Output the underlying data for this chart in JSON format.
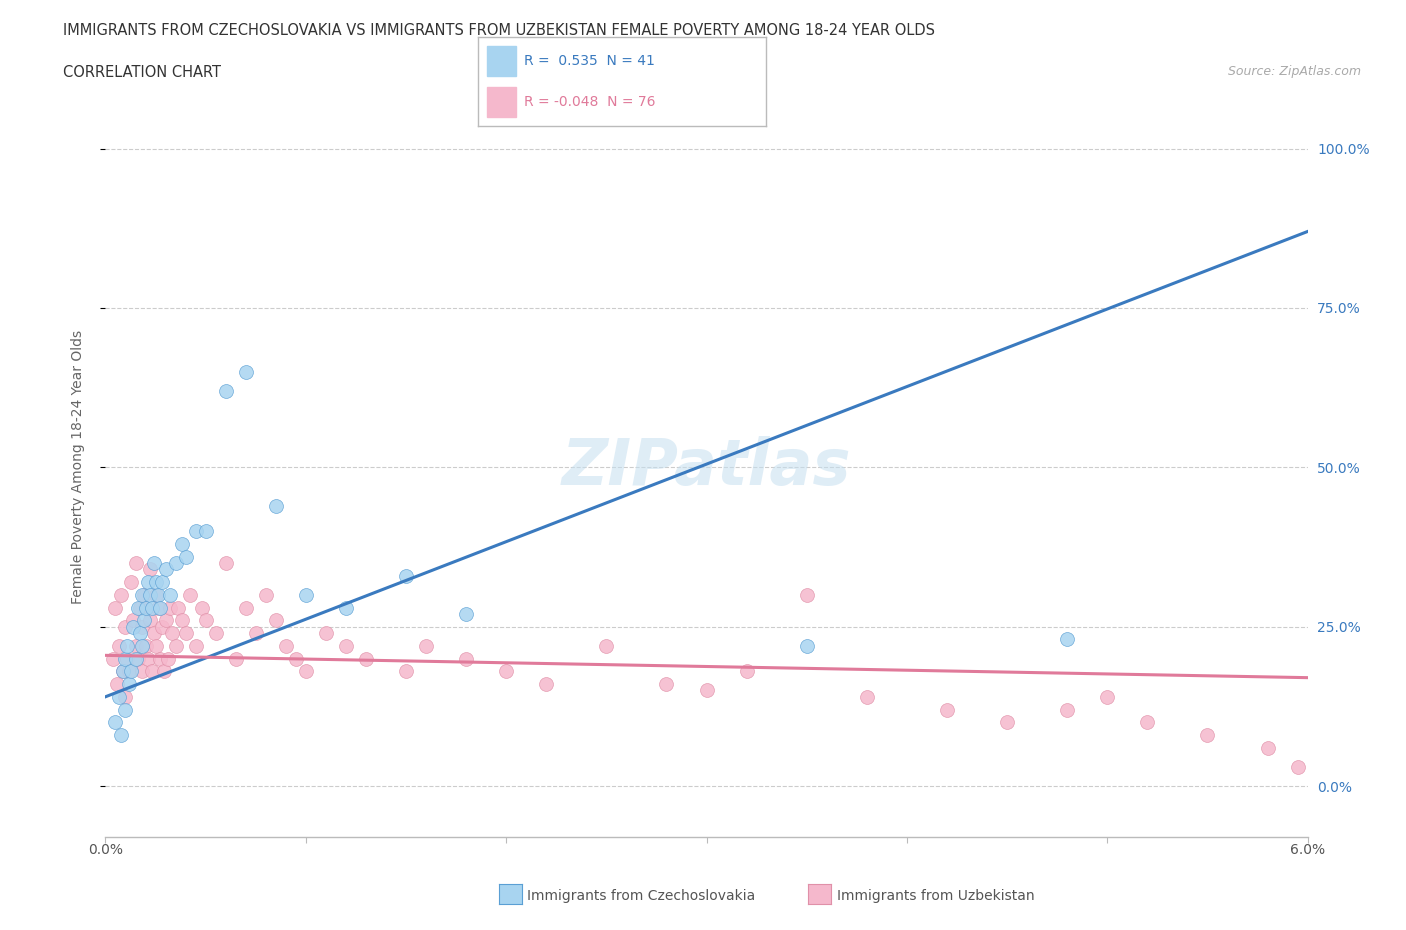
{
  "title_line1": "IMMIGRANTS FROM CZECHOSLOVAKIA VS IMMIGRANTS FROM UZBEKISTAN FEMALE POVERTY AMONG 18-24 YEAR OLDS",
  "title_line2": "CORRELATION CHART",
  "source": "Source: ZipAtlas.com",
  "ylabel": "Female Poverty Among 18-24 Year Olds",
  "ytick_vals": [
    0,
    25,
    50,
    75,
    100
  ],
  "xmin": 0.0,
  "xmax": 6.0,
  "ymin": -8,
  "ymax": 108,
  "color_czech": "#a8d4f0",
  "color_uzbek": "#f5b8cc",
  "color_czech_line": "#3a7abf",
  "color_uzbek_line": "#e07a9a",
  "color_czech_edge": "#5a9fd4",
  "color_uzbek_edge": "#e090a8",
  "watermark": "ZIPatlas",
  "trendline_czech": [
    14.0,
    87.0
  ],
  "trendline_uzbek": [
    20.5,
    17.0
  ],
  "legend_text1": "R =  0.535  N = 41",
  "legend_text2": "R = -0.048  N = 76",
  "czech_x": [
    0.05,
    0.07,
    0.08,
    0.09,
    0.1,
    0.1,
    0.11,
    0.12,
    0.13,
    0.14,
    0.15,
    0.16,
    0.17,
    0.18,
    0.18,
    0.19,
    0.2,
    0.21,
    0.22,
    0.23,
    0.24,
    0.25,
    0.26,
    0.27,
    0.28,
    0.3,
    0.32,
    0.35,
    0.38,
    0.4,
    0.45,
    0.5,
    0.6,
    0.7,
    0.85,
    1.0,
    1.2,
    1.5,
    1.8,
    3.5,
    4.8
  ],
  "czech_y": [
    10,
    14,
    8,
    18,
    12,
    20,
    22,
    16,
    18,
    25,
    20,
    28,
    24,
    22,
    30,
    26,
    28,
    32,
    30,
    28,
    35,
    32,
    30,
    28,
    32,
    34,
    30,
    35,
    38,
    36,
    40,
    40,
    62,
    65,
    44,
    30,
    28,
    33,
    27,
    22,
    23
  ],
  "uzbek_x": [
    0.04,
    0.05,
    0.06,
    0.07,
    0.08,
    0.09,
    0.1,
    0.1,
    0.11,
    0.12,
    0.13,
    0.14,
    0.15,
    0.15,
    0.16,
    0.17,
    0.18,
    0.18,
    0.19,
    0.2,
    0.2,
    0.21,
    0.22,
    0.22,
    0.23,
    0.24,
    0.25,
    0.25,
    0.26,
    0.27,
    0.28,
    0.29,
    0.3,
    0.31,
    0.32,
    0.33,
    0.35,
    0.36,
    0.38,
    0.4,
    0.42,
    0.45,
    0.48,
    0.5,
    0.55,
    0.6,
    0.65,
    0.7,
    0.75,
    0.8,
    0.85,
    0.9,
    0.95,
    1.0,
    1.1,
    1.2,
    1.3,
    1.5,
    1.6,
    1.8,
    2.0,
    2.2,
    2.5,
    2.8,
    3.0,
    3.2,
    3.5,
    3.8,
    4.2,
    4.5,
    4.8,
    5.0,
    5.2,
    5.5,
    5.8,
    5.95
  ],
  "uzbek_y": [
    20,
    28,
    16,
    22,
    30,
    18,
    25,
    14,
    20,
    18,
    32,
    26,
    22,
    35,
    20,
    28,
    18,
    25,
    30,
    22,
    28,
    20,
    26,
    34,
    18,
    24,
    22,
    30,
    28,
    20,
    25,
    18,
    26,
    20,
    28,
    24,
    22,
    28,
    26,
    24,
    30,
    22,
    28,
    26,
    24,
    35,
    20,
    28,
    24,
    30,
    26,
    22,
    20,
    18,
    24,
    22,
    20,
    18,
    22,
    20,
    18,
    16,
    22,
    16,
    15,
    18,
    30,
    14,
    12,
    10,
    12,
    14,
    10,
    8,
    6,
    3
  ]
}
